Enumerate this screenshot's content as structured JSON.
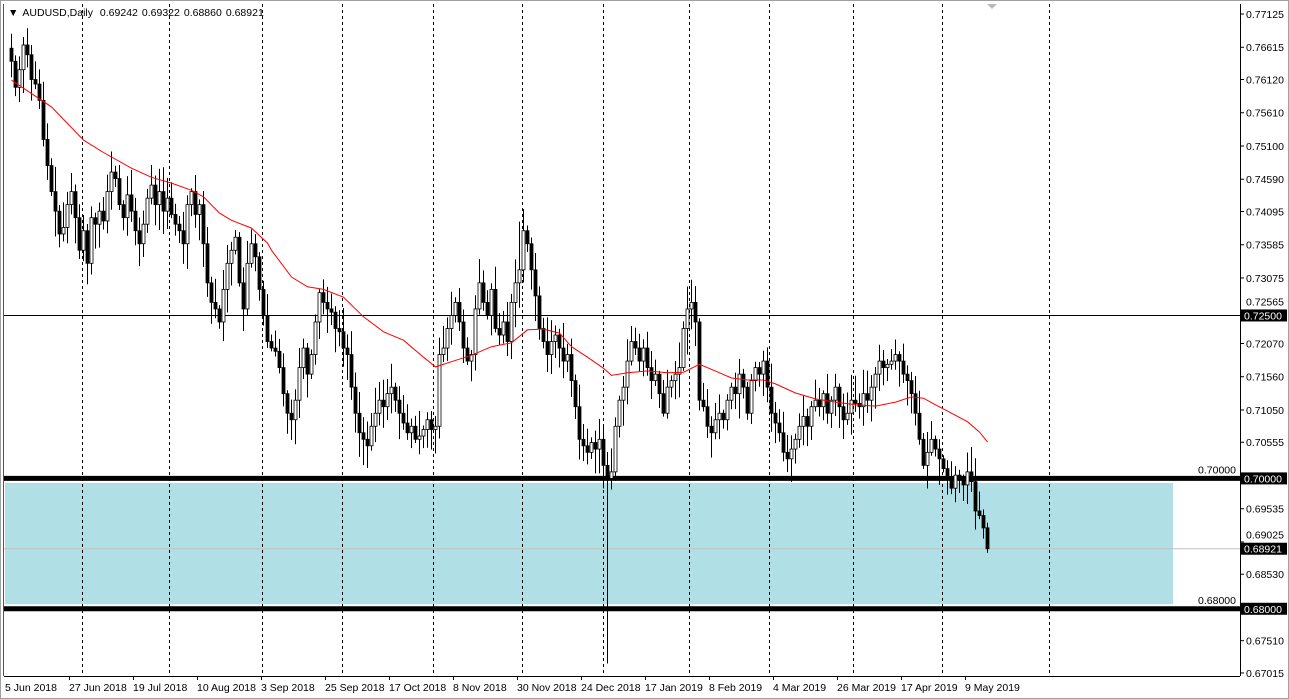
{
  "header": {
    "menu_icon": "triangle-down-icon",
    "symbol": "AUDUSD,Daily",
    "open": "0.69242",
    "high": "0.69322",
    "low": "0.68860",
    "close": "0.68921"
  },
  "colors": {
    "background": "#ffffff",
    "candle_bear": "#000000",
    "candle_bull": "#ffffff",
    "moving_average": "#ff0000",
    "zone_fill": "#b0dfe5",
    "bid_line": "#c0c0c0"
  },
  "chart_data": {
    "type": "candlestick",
    "title": "AUDUSD,Daily",
    "ylim": [
      0.67015,
      0.77125
    ],
    "grid": "vertical dashed",
    "y_ticks": [
      "0.77125",
      "0.76615",
      "0.76120",
      "0.75610",
      "0.75100",
      "0.74590",
      "0.74095",
      "0.73585",
      "0.73075",
      "0.72565",
      "0.72070",
      "0.71560",
      "0.71050",
      "0.70555",
      "0.70000",
      "0.69535",
      "0.69025",
      "0.68530",
      "0.68000",
      "0.67510",
      "0.67015"
    ],
    "x_ticks": [
      "5 Jun 2018",
      "27 Jun 2018",
      "19 Jul 2018",
      "10 Aug 2018",
      "3 Sep 2018",
      "25 Sep 2018",
      "17 Oct 2018",
      "8 Nov 2018",
      "30 Nov 2018",
      "24 Dec 2018",
      "17 Jan 2019",
      "8 Feb 2019",
      "4 Mar 2019",
      "26 Mar 2019",
      "17 Apr 2019",
      "9 May 2019"
    ],
    "closes": [
      0.764,
      0.76,
      0.7627,
      0.7665,
      0.765,
      0.7612,
      0.7605,
      0.758,
      0.752,
      0.748,
      0.744,
      0.741,
      0.7375,
      0.7385,
      0.742,
      0.744,
      0.74,
      0.735,
      0.738,
      0.733,
      0.74,
      0.739,
      0.741,
      0.7395,
      0.744,
      0.747,
      0.746,
      0.742,
      0.74,
      0.7435,
      0.741,
      0.738,
      0.736,
      0.739,
      0.743,
      0.745,
      0.742,
      0.744,
      0.741,
      0.743,
      0.7405,
      0.739,
      0.738,
      0.736,
      0.742,
      0.744,
      0.7405,
      0.742,
      0.736,
      0.73,
      0.727,
      0.726,
      0.724,
      0.729,
      0.733,
      0.735,
      0.737,
      0.73,
      0.726,
      0.733,
      0.736,
      0.734,
      0.729,
      0.725,
      0.721,
      0.72,
      0.7195,
      0.717,
      0.713,
      0.71,
      0.709,
      0.712,
      0.717,
      0.72,
      0.716,
      0.719,
      0.724,
      0.7285,
      0.727,
      0.726,
      0.7255,
      0.723,
      0.7225,
      0.72,
      0.719,
      0.714,
      0.71,
      0.707,
      0.706,
      0.705,
      0.708,
      0.71,
      0.712,
      0.711,
      0.713,
      0.714,
      0.712,
      0.71,
      0.7085,
      0.707,
      0.708,
      0.706,
      0.7065,
      0.7075,
      0.709,
      0.7075,
      0.708,
      0.719,
      0.72,
      0.723,
      0.725,
      0.727,
      0.724,
      0.72,
      0.718,
      0.719,
      0.726,
      0.73,
      0.727,
      0.725,
      0.729,
      0.723,
      0.722,
      0.724,
      0.721,
      0.727,
      0.73,
      0.732,
      0.738,
      0.736,
      0.732,
      0.728,
      0.723,
      0.721,
      0.719,
      0.721,
      0.722,
      0.72,
      0.718,
      0.719,
      0.715,
      0.711,
      0.706,
      0.705,
      0.704,
      0.7055,
      0.7045,
      0.706,
      0.702,
      0.7,
      0.701,
      0.708,
      0.712,
      0.714,
      0.718,
      0.721,
      0.72,
      0.718,
      0.72,
      0.717,
      0.715,
      0.716,
      0.713,
      0.71,
      0.714,
      0.715,
      0.716,
      0.717,
      0.723,
      0.726,
      0.727,
      0.724,
      0.712,
      0.711,
      0.708,
      0.707,
      0.709,
      0.71,
      0.709,
      0.712,
      0.714,
      0.713,
      0.716,
      0.714,
      0.71,
      0.715,
      0.717,
      0.716,
      0.718,
      0.714,
      0.71,
      0.7085,
      0.707,
      0.704,
      0.703,
      0.7045,
      0.706,
      0.708,
      0.7095,
      0.708,
      0.711,
      0.712,
      0.711,
      0.713,
      0.71,
      0.712,
      0.714,
      0.711,
      0.709,
      0.71,
      0.712,
      0.7115,
      0.711,
      0.713,
      0.712,
      0.714,
      0.716,
      0.718,
      0.717,
      0.7175,
      0.718,
      0.719,
      0.718,
      0.716,
      0.715,
      0.713,
      0.71,
      0.706,
      0.702,
      0.704,
      0.706,
      0.7045,
      0.703,
      0.7015,
      0.7,
      0.6985,
      0.7005,
      0.7,
      0.699,
      0.701,
      0.6995,
      0.695,
      0.6943,
      0.6924,
      0.68921
    ],
    "last_candle": {
      "open": 0.69242,
      "high": 0.69322,
      "low": 0.6886,
      "close": 0.68921
    },
    "extremes": [
      {
        "index": 149,
        "low": 0.6716
      },
      {
        "index": 127,
        "high": 0.7394
      },
      {
        "index": 3,
        "high": 0.7677
      }
    ],
    "moving_average": [
      [
        0,
        0.7611
      ],
      [
        10,
        0.757
      ],
      [
        18,
        0.7519
      ],
      [
        23,
        0.75
      ],
      [
        30,
        0.7476
      ],
      [
        35,
        0.7462
      ],
      [
        40,
        0.7453
      ],
      [
        45,
        0.7442
      ],
      [
        48,
        0.7432
      ],
      [
        52,
        0.7407
      ],
      [
        55,
        0.7396
      ],
      [
        60,
        0.7384
      ],
      [
        64,
        0.7361
      ],
      [
        65,
        0.735
      ],
      [
        70,
        0.7309
      ],
      [
        74,
        0.7294
      ],
      [
        78,
        0.729
      ],
      [
        83,
        0.7278
      ],
      [
        88,
        0.7248
      ],
      [
        93,
        0.7225
      ],
      [
        98,
        0.7212
      ],
      [
        103,
        0.7186
      ],
      [
        106,
        0.7171
      ],
      [
        110,
        0.7179
      ],
      [
        115,
        0.7189
      ],
      [
        120,
        0.7202
      ],
      [
        125,
        0.7208
      ],
      [
        129,
        0.7228
      ],
      [
        133,
        0.7229
      ],
      [
        137,
        0.7223
      ],
      [
        140,
        0.7202
      ],
      [
        144,
        0.7186
      ],
      [
        148,
        0.7169
      ],
      [
        150,
        0.7158
      ],
      [
        154,
        0.7162
      ],
      [
        159,
        0.7165
      ],
      [
        164,
        0.7162
      ],
      [
        168,
        0.7163
      ],
      [
        172,
        0.7175
      ],
      [
        177,
        0.7162
      ],
      [
        180,
        0.7154
      ],
      [
        184,
        0.7151
      ],
      [
        188,
        0.7151
      ],
      [
        191,
        0.7145
      ],
      [
        196,
        0.7131
      ],
      [
        201,
        0.7122
      ],
      [
        206,
        0.7117
      ],
      [
        211,
        0.7113
      ],
      [
        216,
        0.7111
      ],
      [
        221,
        0.7117
      ],
      [
        225,
        0.7125
      ],
      [
        228,
        0.7123
      ],
      [
        231,
        0.7113
      ],
      [
        235,
        0.71
      ],
      [
        239,
        0.7087
      ],
      [
        242,
        0.7071
      ],
      [
        244,
        0.7056
      ]
    ],
    "horizontal_lines": [
      {
        "price": "0.72500",
        "style": "thin"
      },
      {
        "price": "0.70000",
        "style": "thick"
      },
      {
        "price": "0.68000",
        "style": "thick"
      }
    ],
    "bid_price": "0.68921",
    "zone": {
      "from": 0.6807,
      "to": 0.6993
    }
  }
}
